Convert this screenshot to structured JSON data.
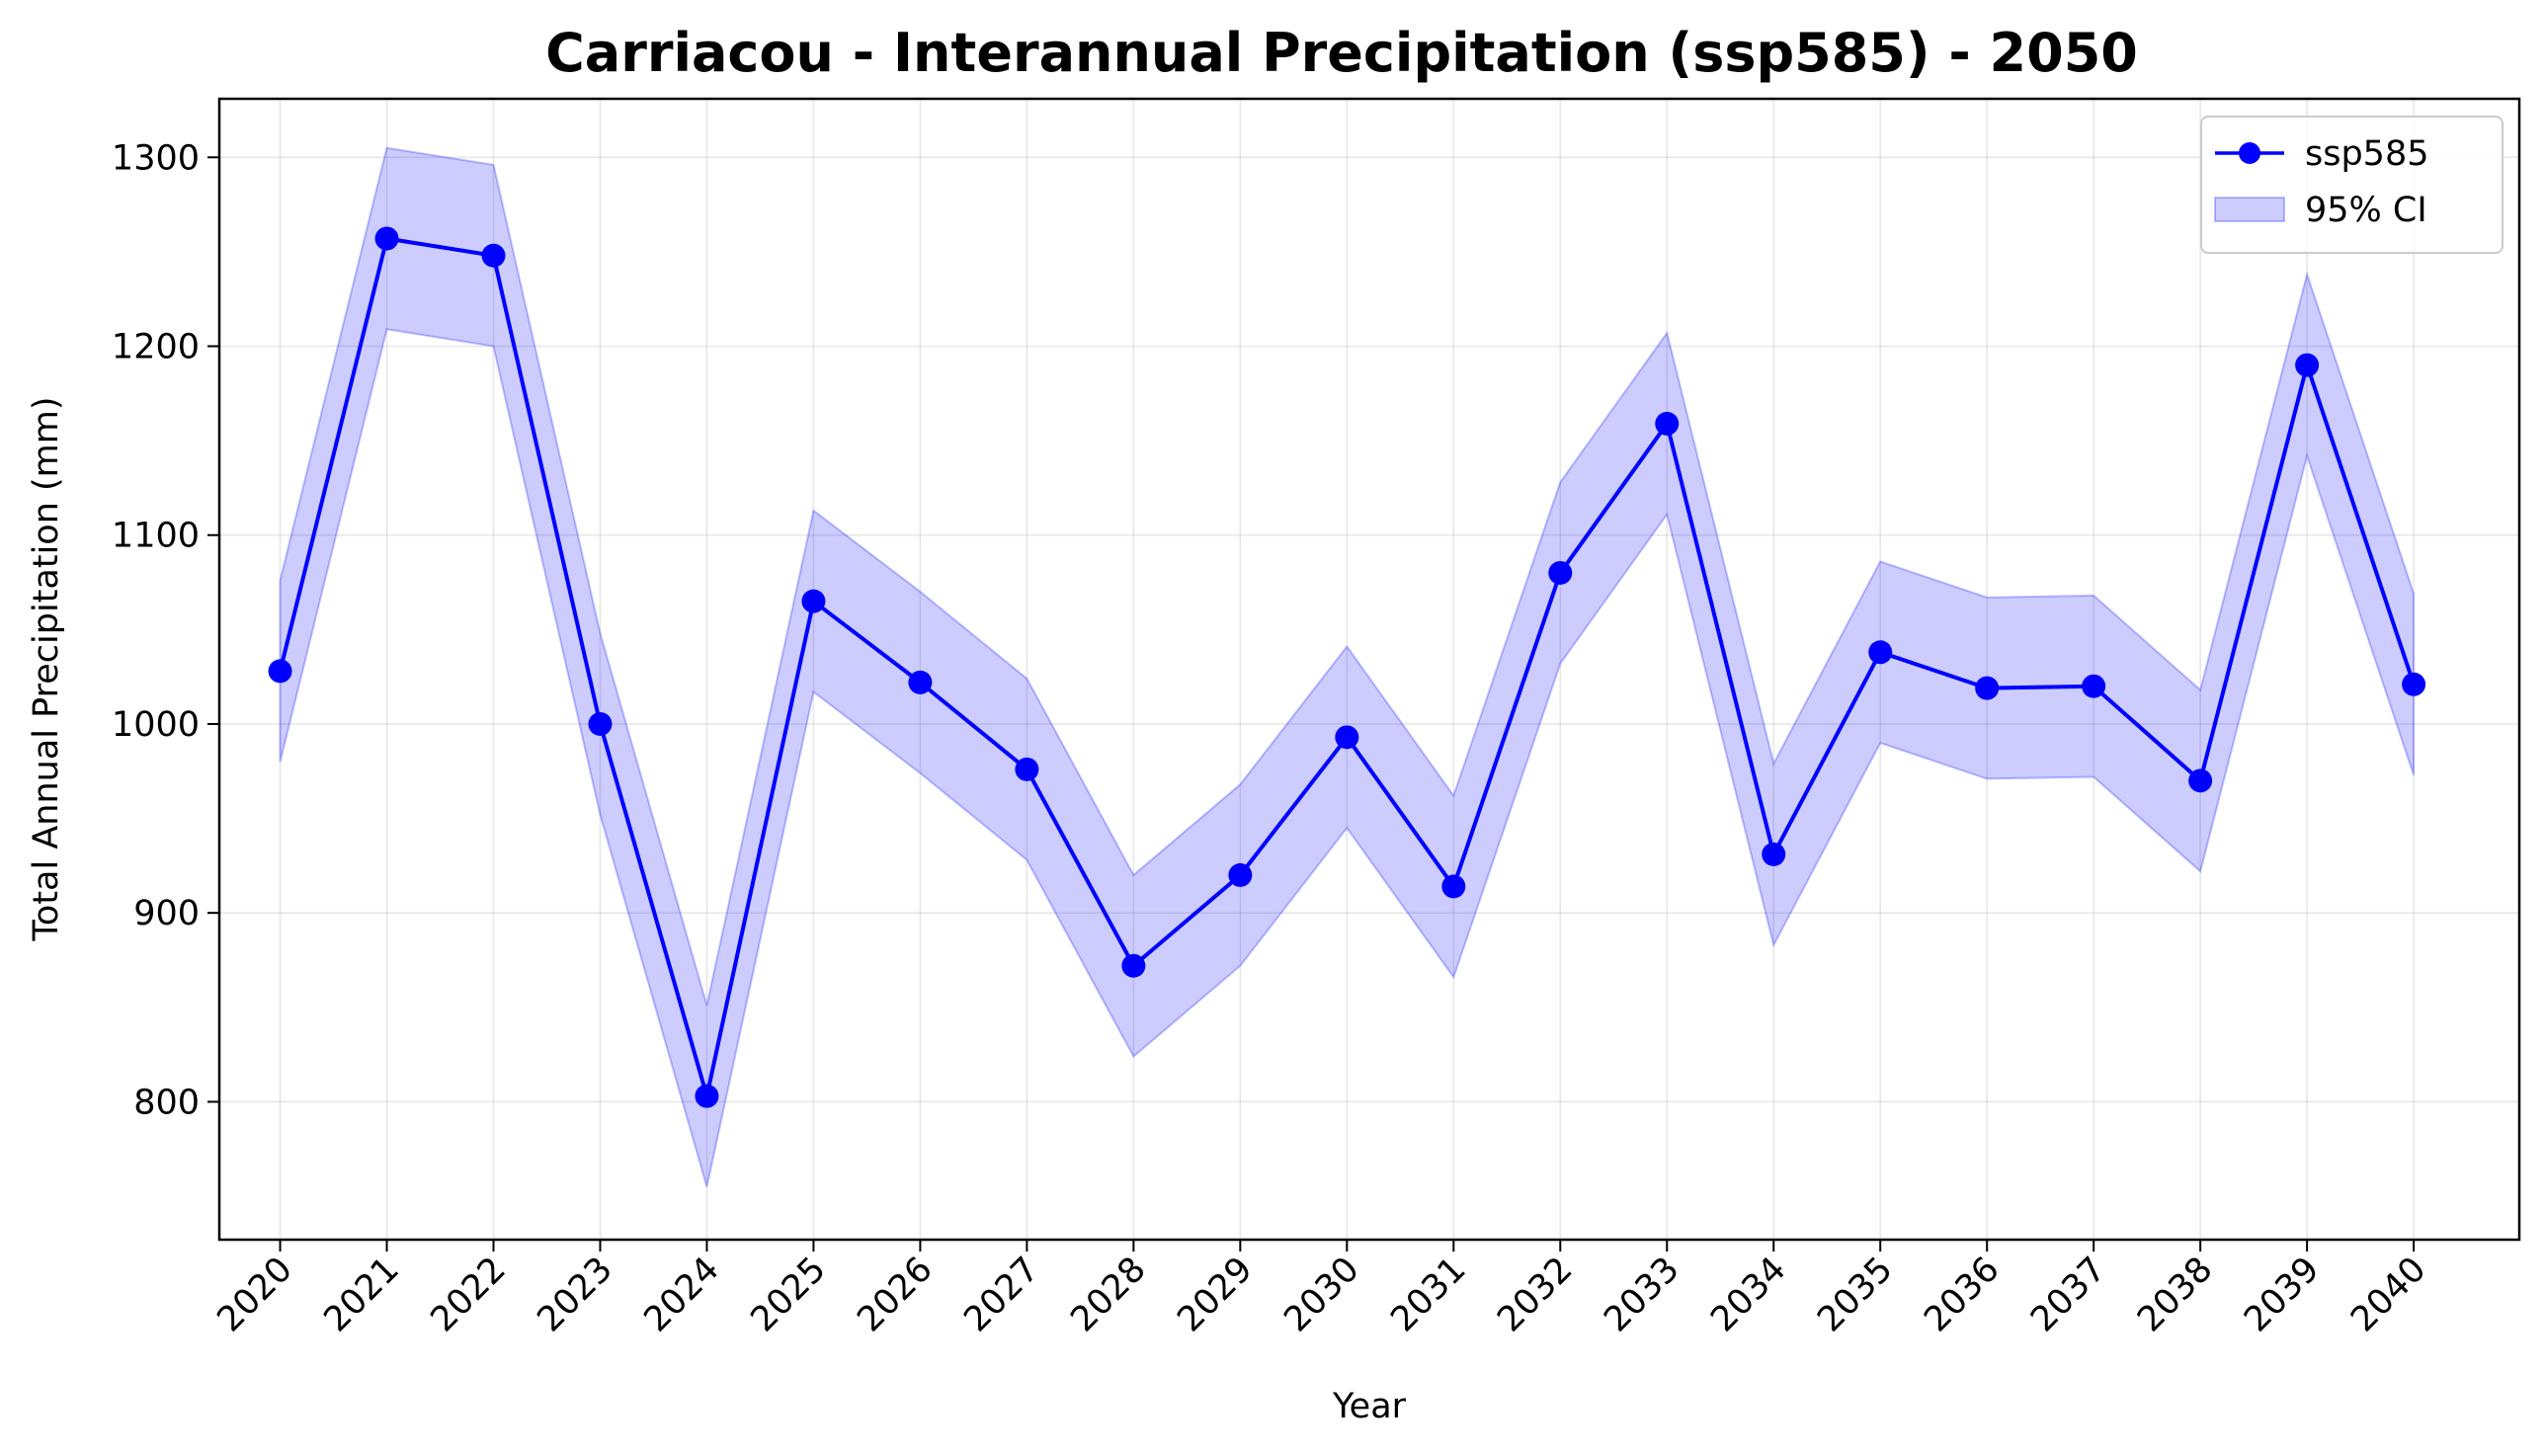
{
  "chart_data": {
    "type": "line",
    "title": "Carriacou - Interannual Precipitation (ssp585) - 2050",
    "xlabel": "Year",
    "ylabel": "Total Annual Precipitation (mm)",
    "x": [
      2020,
      2021,
      2022,
      2023,
      2024,
      2025,
      2026,
      2027,
      2028,
      2029,
      2030,
      2031,
      2032,
      2033,
      2034,
      2035,
      2036,
      2037,
      2038,
      2039,
      2040
    ],
    "x_tick_labels": [
      "2020",
      "2021",
      "2022",
      "2023",
      "2024",
      "2025",
      "2026",
      "2027",
      "2028",
      "2029",
      "2030",
      "2031",
      "2032",
      "2033",
      "2034",
      "2035",
      "2036",
      "2037",
      "2038",
      "2039",
      "2040"
    ],
    "y_ticks": [
      800,
      900,
      1000,
      1100,
      1200,
      1300
    ],
    "y_tick_labels": [
      "800",
      "900",
      "1000",
      "1100",
      "1200",
      "1300"
    ],
    "ylim": [
      727,
      1331
    ],
    "xlim": [
      2019.43,
      2040.99
    ],
    "grid": true,
    "legend_position": "top-right",
    "series": [
      {
        "name": "ssp585",
        "color": "#0000ff",
        "marker": "circle",
        "values": [
          1028,
          1257,
          1248,
          1000,
          803,
          1065,
          1022,
          976,
          872,
          920,
          993,
          914,
          1080,
          1159,
          931,
          1038,
          1019,
          1020,
          970,
          1190,
          1021
        ]
      }
    ],
    "confidence_band": {
      "name": "95% CI",
      "fill_color": "#0000ff",
      "fill_opacity": 0.2,
      "lower": [
        980,
        1209,
        1200,
        952,
        755,
        1017,
        974,
        928,
        824,
        872,
        945,
        866,
        1032,
        1111,
        883,
        990,
        971,
        972,
        922,
        1142,
        973
      ],
      "upper": [
        1076,
        1305,
        1296,
        1048,
        851,
        1113,
        1070,
        1024,
        920,
        968,
        1041,
        962,
        1128,
        1207,
        979,
        1086,
        1067,
        1068,
        1018,
        1238,
        1069
      ]
    }
  }
}
